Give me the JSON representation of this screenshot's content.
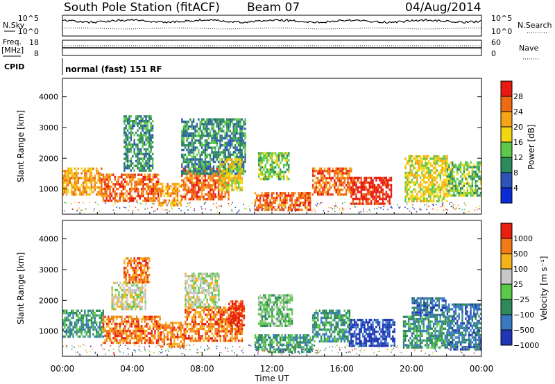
{
  "header": {
    "station": "South Pole Station (fitACF)",
    "beam": "Beam 07",
    "date": "04/Aug/2014"
  },
  "top_panel": {
    "nsky_label": "N.Sky",
    "nsearch_label": "N.Search",
    "freq_label": "Freq.",
    "freq_unit": "[MHz]",
    "nave_label": "Nave",
    "cpid_label": "CPID",
    "cpid_text": "normal (fast) 151 RF",
    "noise_ticks": [
      "10^5",
      "10^0"
    ],
    "noise_ticks_right": [
      "10^5",
      "10^0"
    ],
    "freq_ticks": [
      "18",
      "8"
    ],
    "nave_ticks": [
      "60",
      "0"
    ]
  },
  "chart_data": [
    {
      "type": "heatmap",
      "name": "power",
      "xlabel": "",
      "ylabel": "Slant Range [km]",
      "xlim": [
        0,
        24
      ],
      "ylim": [
        180,
        4600
      ],
      "yticks": [
        1000,
        2000,
        3000,
        4000
      ],
      "colorbar": {
        "label": "Power [dB]",
        "ticks": [
          "28",
          "24",
          "20",
          "16",
          "12",
          "8",
          "4"
        ],
        "colors": [
          "#0a2bd6",
          "#2c53b8",
          "#2d8a5a",
          "#5cc94a",
          "#f2d60f",
          "#f7a418",
          "#f06a14",
          "#e81a10"
        ]
      },
      "regions": [
        {
          "t0": 0.0,
          "t1": 2.2,
          "r0": 800,
          "r1": 1700,
          "level": 5
        },
        {
          "t0": 2.2,
          "t1": 5.5,
          "r0": 600,
          "r1": 1500,
          "level": 6
        },
        {
          "t0": 3.5,
          "t1": 5.2,
          "r0": 1600,
          "r1": 3400,
          "level": 2
        },
        {
          "t0": 5.5,
          "t1": 6.8,
          "r0": 500,
          "r1": 1200,
          "level": 5
        },
        {
          "t0": 6.8,
          "t1": 9.5,
          "r0": 700,
          "r1": 1700,
          "level": 6
        },
        {
          "t0": 6.8,
          "t1": 10.5,
          "r0": 1500,
          "r1": 3300,
          "level": 2
        },
        {
          "t0": 9.0,
          "t1": 10.3,
          "r0": 1000,
          "r1": 2000,
          "level": 4
        },
        {
          "t0": 11.0,
          "t1": 14.2,
          "r0": 300,
          "r1": 900,
          "level": 6
        },
        {
          "t0": 11.2,
          "t1": 13.0,
          "r0": 1300,
          "r1": 2200,
          "level": 3
        },
        {
          "t0": 14.3,
          "t1": 16.5,
          "r0": 800,
          "r1": 1700,
          "level": 6
        },
        {
          "t0": 16.5,
          "t1": 18.8,
          "r0": 500,
          "r1": 1400,
          "level": 7
        },
        {
          "t0": 19.6,
          "t1": 22.0,
          "r0": 600,
          "r1": 2100,
          "level": 4
        },
        {
          "t0": 22.0,
          "t1": 24.0,
          "r0": 800,
          "r1": 1900,
          "level": 3
        }
      ]
    },
    {
      "type": "heatmap",
      "name": "velocity",
      "xlabel": "Time UT",
      "ylabel": "Slant Range [km]",
      "xlim": [
        0,
        24
      ],
      "ylim": [
        180,
        4600
      ],
      "yticks": [
        1000,
        2000,
        3000,
        4000
      ],
      "xticks": [
        "00:00",
        "04:00",
        "08:00",
        "12:00",
        "16:00",
        "20:00",
        "00:00"
      ],
      "colorbar": {
        "label": "Velocity [m s⁻¹]",
        "ticks": [
          "1000",
          "500",
          "100",
          "25",
          "−25",
          "−100",
          "−500",
          "−1000"
        ],
        "colors": [
          "#1f37b5",
          "#3a79c2",
          "#2f8a5b",
          "#5bc94a",
          "#c8c8c8",
          "#f5b31a",
          "#f37a13",
          "#e8200f"
        ]
      },
      "regions": [
        {
          "t0": 0.0,
          "t1": 2.3,
          "r0": 800,
          "r1": 1700,
          "level": 2
        },
        {
          "t0": 2.3,
          "t1": 5.6,
          "r0": 600,
          "r1": 1500,
          "level": 6
        },
        {
          "t0": 2.8,
          "t1": 4.8,
          "r0": 1700,
          "r1": 2600,
          "level": 4
        },
        {
          "t0": 3.5,
          "t1": 5.0,
          "r0": 2600,
          "r1": 3400,
          "level": 6
        },
        {
          "t0": 5.6,
          "t1": 7.0,
          "r0": 500,
          "r1": 1300,
          "level": 6
        },
        {
          "t0": 7.0,
          "t1": 10.3,
          "r0": 700,
          "r1": 1800,
          "level": 6
        },
        {
          "t0": 7.0,
          "t1": 9.0,
          "r0": 1800,
          "r1": 2900,
          "level": 4
        },
        {
          "t0": 9.5,
          "t1": 10.4,
          "r0": 1200,
          "r1": 2000,
          "level": 7
        },
        {
          "t0": 11.0,
          "t1": 14.3,
          "r0": 300,
          "r1": 900,
          "level": 2
        },
        {
          "t0": 11.2,
          "t1": 13.2,
          "r0": 1200,
          "r1": 2200,
          "level": 3
        },
        {
          "t0": 14.3,
          "t1": 16.4,
          "r0": 700,
          "r1": 1700,
          "level": 2
        },
        {
          "t0": 16.4,
          "t1": 19.0,
          "r0": 500,
          "r1": 1400,
          "level": 0
        },
        {
          "t0": 19.5,
          "t1": 22.0,
          "r0": 500,
          "r1": 1500,
          "level": 2
        },
        {
          "t0": 20.0,
          "t1": 22.0,
          "r0": 1500,
          "r1": 2100,
          "level": 1
        },
        {
          "t0": 22.0,
          "t1": 24.0,
          "r0": 400,
          "r1": 1900,
          "level": 1
        }
      ]
    }
  ]
}
